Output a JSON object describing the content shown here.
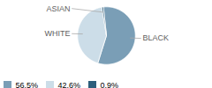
{
  "chart_data": {
    "type": "pie",
    "categories": [
      "BLACK",
      "WHITE",
      "ASIAN"
    ],
    "values": [
      56.5,
      42.6,
      0.9
    ],
    "value_labels": [
      "56.5%",
      "42.6%",
      "0.9%"
    ],
    "colors": [
      "#7a9eb6",
      "#ccdde8",
      "#2d5f7c"
    ],
    "legend": "lower left"
  }
}
